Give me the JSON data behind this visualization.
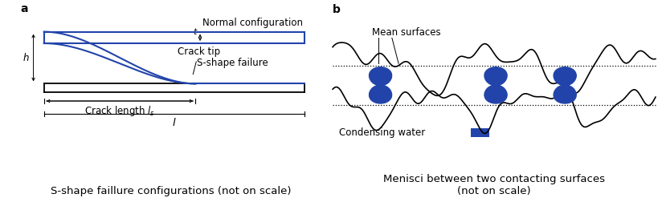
{
  "fig_width": 8.2,
  "fig_height": 2.52,
  "dpi": 100,
  "background_color": "#ffffff",
  "blue_color": "#2244aa",
  "black_color": "#000000",
  "label_a": "a",
  "label_b": "b",
  "caption_a": "S-shape faillure configurations (not on scale)",
  "caption_b": "Menisci between two contacting surfaces\n(not on scale)",
  "text_normal_config": "Normal configuration",
  "text_crack_tip": "Crack tip",
  "text_s_shape": "S-shape failure",
  "text_crack_length": "Crack length $l_s$",
  "text_l": "$l$",
  "text_h": "$h$",
  "text_t": "$t$",
  "text_mean_surfaces": "Mean surfaces",
  "text_condensing": "Condensing water",
  "font_size_caption": 9.5,
  "font_size_label": 10,
  "font_size_annot": 8.5
}
